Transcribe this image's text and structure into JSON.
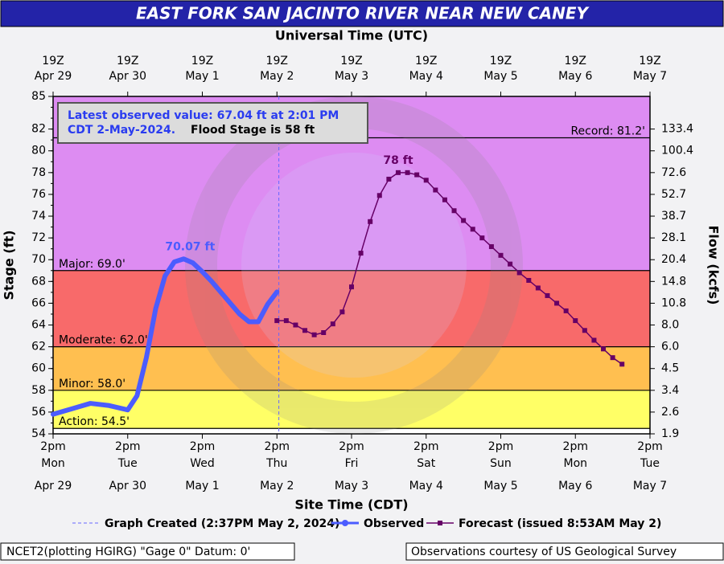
{
  "chart_data": {
    "type": "line",
    "title": "EAST FORK SAN JACINTO RIVER NEAR NEW CANEY",
    "top_xlabel": "Universal Time (UTC)",
    "xlabel": "Site Time (CDT)",
    "ylabel": "Stage (ft)",
    "y2label": "Flow (kcfs)",
    "xlim": [
      "2024-04-29T14:00",
      "2024-05-07T14:00"
    ],
    "xticks": [
      {
        "value": "2024-04-29T14:00",
        "label": "2pm"
      },
      {
        "value": "2024-04-30T14:00",
        "label": "2pm"
      },
      {
        "value": "2024-05-01T14:00",
        "label": "2pm"
      },
      {
        "value": "2024-05-02T14:00",
        "label": "2pm"
      },
      {
        "value": "2024-05-03T14:00",
        "label": "2pm"
      },
      {
        "value": "2024-05-04T14:00",
        "label": "2pm"
      },
      {
        "value": "2024-05-05T14:00",
        "label": "2pm"
      },
      {
        "value": "2024-05-06T14:00",
        "label": "2pm"
      },
      {
        "value": "2024-05-07T14:00",
        "label": "2pm"
      }
    ],
    "xtick_days": [
      "Mon",
      "Tue",
      "Wed",
      "Thu",
      "Fri",
      "Sat",
      "Sun",
      "Mon",
      "Tue"
    ],
    "xtick_dates": [
      "Apr 29",
      "Apr 30",
      "May 1",
      "May 2",
      "May 3",
      "May 4",
      "May 5",
      "May 6",
      "May 7"
    ],
    "top_xticks": [
      "19Z",
      "19Z",
      "19Z",
      "19Z",
      "19Z",
      "19Z",
      "19Z",
      "19Z",
      "19Z"
    ],
    "ylim": [
      54,
      85
    ],
    "yticks": [
      54,
      56,
      58,
      60,
      62,
      64,
      66,
      68,
      70,
      72,
      74,
      76,
      78,
      80,
      82,
      85
    ],
    "y2ticks": [
      1.9,
      2.6,
      3.4,
      4.5,
      6.0,
      8.0,
      10.8,
      14.8,
      20.4,
      28.1,
      38.7,
      52.7,
      72.6,
      100.4,
      133.4
    ],
    "y2tick_labels": [
      "1.9",
      "2.6",
      "3.4",
      "4.5",
      "6.0",
      "8.0",
      "10.8",
      "14.8",
      "20.4",
      "28.1",
      "38.7",
      "52.7",
      "72.6",
      "100.4",
      "133.4"
    ],
    "y2tick_stage": [
      54,
      56,
      58,
      60,
      62,
      64,
      66,
      68,
      70,
      72,
      74,
      76,
      78,
      80,
      82
    ],
    "thresholds": [
      {
        "label": "Action: 54.5'",
        "value": 54.5,
        "color": "#ffff66"
      },
      {
        "label": "Minor: 58.0'",
        "value": 58.0,
        "color": "#ffbf50"
      },
      {
        "label": "Moderate: 62.0'",
        "value": 62.0,
        "color": "#f86a6a"
      },
      {
        "label": "Major: 69.0'",
        "value": 69.0,
        "color": "#dd8cf2"
      }
    ],
    "record": {
      "label": "Record: 81.2'",
      "value": 81.2
    },
    "info": [
      "Latest observed value: 67.04 ft at 2:01 PM",
      "CDT 2-May-2024.",
      "Flood Stage is 58 ft"
    ],
    "created": "2024-05-02T14:37",
    "created_label": "Graph Created (2:37PM May 2, 2024)",
    "peak_labels": [
      "70.07 ft",
      "78 ft"
    ],
    "series": [
      {
        "name": "Observed",
        "color": "#4b5cff",
        "x": [
          "2024-04-29T14:00",
          "2024-04-29T20:00",
          "2024-04-30T02:00",
          "2024-04-30T08:00",
          "2024-04-30T14:00",
          "2024-04-30T17:00",
          "2024-04-30T20:00",
          "2024-04-30T23:00",
          "2024-05-01T02:00",
          "2024-05-01T05:00",
          "2024-05-01T08:00",
          "2024-05-01T11:00",
          "2024-05-01T14:00",
          "2024-05-01T17:00",
          "2024-05-01T20:00",
          "2024-05-01T23:00",
          "2024-05-02T02:00",
          "2024-05-02T05:00",
          "2024-05-02T08:00",
          "2024-05-02T11:00",
          "2024-05-02T14:01"
        ],
        "values": [
          55.8,
          56.3,
          56.8,
          56.6,
          56.2,
          57.5,
          61.0,
          65.5,
          68.5,
          69.8,
          70.07,
          69.7,
          68.9,
          68.0,
          67.0,
          66.0,
          65.0,
          64.3,
          64.3,
          65.9,
          67.04
        ]
      },
      {
        "name": "Forecast (issued 8:53AM May 2)",
        "color": "#660066",
        "x": [
          "2024-05-02T14:00",
          "2024-05-02T17:00",
          "2024-05-02T20:00",
          "2024-05-02T23:00",
          "2024-05-03T02:00",
          "2024-05-03T05:00",
          "2024-05-03T08:00",
          "2024-05-03T11:00",
          "2024-05-03T14:00",
          "2024-05-03T17:00",
          "2024-05-03T20:00",
          "2024-05-03T23:00",
          "2024-05-04T02:00",
          "2024-05-04T05:00",
          "2024-05-04T08:00",
          "2024-05-04T11:00",
          "2024-05-04T14:00",
          "2024-05-04T17:00",
          "2024-05-04T20:00",
          "2024-05-04T23:00",
          "2024-05-05T02:00",
          "2024-05-05T05:00",
          "2024-05-05T08:00",
          "2024-05-05T11:00",
          "2024-05-05T14:00",
          "2024-05-05T17:00",
          "2024-05-05T20:00",
          "2024-05-05T23:00",
          "2024-05-06T02:00",
          "2024-05-06T05:00",
          "2024-05-06T08:00",
          "2024-05-06T11:00",
          "2024-05-06T14:00",
          "2024-05-06T17:00",
          "2024-05-06T20:00",
          "2024-05-06T23:00",
          "2024-05-07T02:00",
          "2024-05-07T05:00"
        ],
        "values": [
          64.4,
          64.4,
          64.0,
          63.5,
          63.1,
          63.3,
          64.1,
          65.2,
          67.5,
          70.6,
          73.5,
          75.9,
          77.4,
          78.0,
          78.0,
          77.8,
          77.3,
          76.4,
          75.5,
          74.5,
          73.6,
          72.8,
          72.0,
          71.2,
          70.4,
          69.6,
          68.8,
          68.1,
          67.4,
          66.7,
          66.0,
          65.3,
          64.4,
          63.5,
          62.6,
          61.8,
          61.0,
          60.4
        ]
      }
    ],
    "footer_left": "NCET2(plotting HGIRG) \"Gage 0\" Datum: 0'",
    "footer_right": "Observations courtesy of US Geological Survey"
  }
}
